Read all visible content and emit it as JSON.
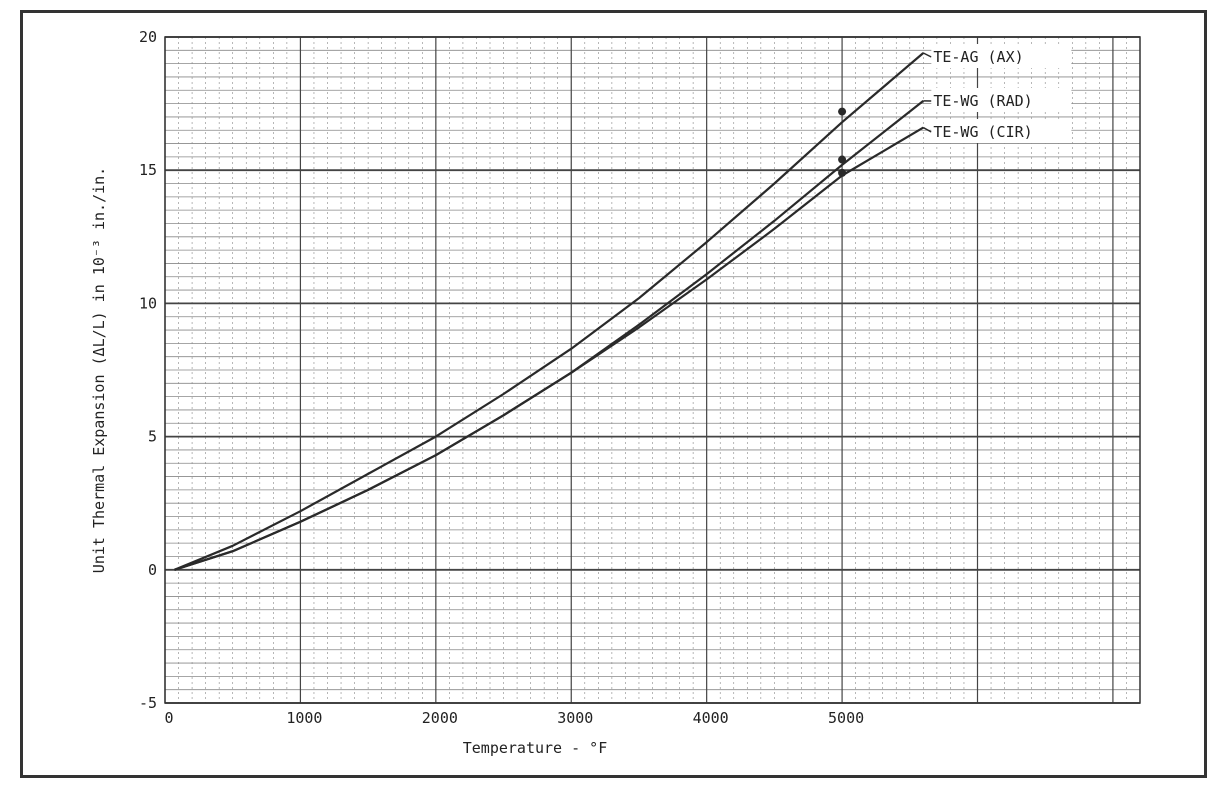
{
  "chart_data": {
    "type": "line",
    "xlabel": "Temperature - °F",
    "ylabel": "Unit Thermal Expansion (ΔL/L) in 10⁻³ in./in.",
    "xlim": [
      0,
      7200
    ],
    "ylim": [
      -5,
      20
    ],
    "x_ticks": [
      0,
      1000,
      2000,
      3000,
      4000,
      5000
    ],
    "y_ticks": [
      -5,
      0,
      5,
      10,
      15,
      20
    ],
    "grid": true,
    "legend_placement": "top-right, labels at line ends",
    "series": [
      {
        "name": "TE-AG (AX)",
        "x": [
          70,
          500,
          1000,
          1500,
          2000,
          2500,
          3000,
          3500,
          4000,
          4500,
          5000,
          5600
        ],
        "y": [
          0,
          0.9,
          2.2,
          3.6,
          5.0,
          6.6,
          8.3,
          10.2,
          12.3,
          14.5,
          16.8,
          19.4
        ]
      },
      {
        "name": "TE-WG (RAD)",
        "x": [
          70,
          500,
          1000,
          1500,
          2000,
          2500,
          3000,
          3500,
          4000,
          4500,
          5000,
          5600
        ],
        "y": [
          0,
          0.7,
          1.8,
          3.0,
          4.3,
          5.8,
          7.4,
          9.2,
          11.1,
          13.1,
          15.2,
          17.6
        ]
      },
      {
        "name": "TE-WG (CIR)",
        "x": [
          70,
          500,
          1000,
          1500,
          2000,
          2500,
          3000,
          3500,
          4000,
          4500,
          5000,
          5600
        ],
        "y": [
          0,
          0.7,
          1.8,
          3.0,
          4.3,
          5.8,
          7.4,
          9.1,
          10.9,
          12.8,
          14.8,
          16.6
        ]
      }
    ],
    "markers": [
      {
        "series": "TE-AG (AX)",
        "x": 5000,
        "y": 17.2
      },
      {
        "series": "TE-WG (RAD)",
        "x": 5000,
        "y": 15.4
      },
      {
        "series": "TE-WG (CIR)",
        "x": 5000,
        "y": 14.9
      }
    ],
    "colors": {
      "line": "#2a2a2a",
      "grid_major": "#444444",
      "grid_minor": "#888888",
      "background": "#ffffff"
    }
  }
}
